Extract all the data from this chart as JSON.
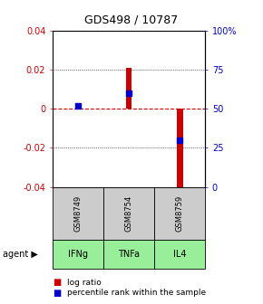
{
  "title": "GDS498 / 10787",
  "samples": [
    "GSM8749",
    "GSM8754",
    "GSM8759"
  ],
  "agents": [
    "IFNg",
    "TNFa",
    "IL4"
  ],
  "log_ratios": [
    0.001,
    0.021,
    -0.04
  ],
  "percentile_ranks": [
    52,
    60,
    30
  ],
  "ylim_left": [
    -0.04,
    0.04
  ],
  "ylim_right": [
    0,
    100
  ],
  "yticks_left": [
    -0.04,
    -0.02,
    0.0,
    0.02,
    0.04
  ],
  "ytick_labels_left": [
    "-0.04",
    "-0.02",
    "0",
    "0.02",
    "0.04"
  ],
  "yticks_right": [
    0,
    25,
    50,
    75,
    100
  ],
  "ytick_labels_right": [
    "0",
    "25",
    "50",
    "75",
    "100%"
  ],
  "bar_color": "#cc0000",
  "dot_color": "#0000cc",
  "zero_line_color": "#cc0000",
  "sample_bg": "#cccccc",
  "agent_bg": "#99ee99",
  "bar_width": 0.12,
  "dot_size": 22,
  "title_fontsize": 9,
  "tick_fontsize": 7,
  "sample_fontsize": 6,
  "agent_fontsize": 7,
  "legend_fontsize": 6.5
}
